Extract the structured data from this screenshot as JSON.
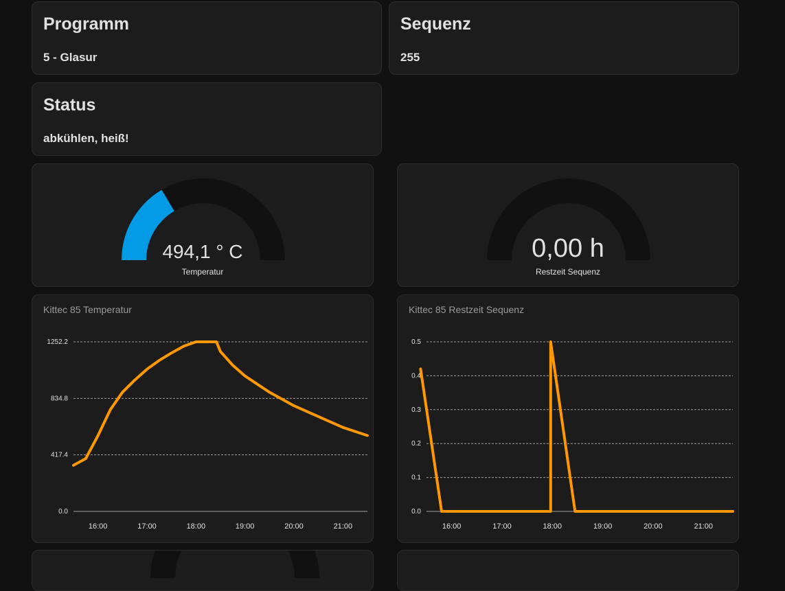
{
  "programm": {
    "title": "Programm",
    "value": "5 - Glasur"
  },
  "sequenz": {
    "title": "Sequenz",
    "value": "255"
  },
  "status": {
    "title": "Status",
    "value": "abkühlen, heiß!"
  },
  "gauges": [
    {
      "value": "494,1 ° C",
      "name": "Temperatur",
      "level": 0.33,
      "color": "#039be5",
      "track": "#111111"
    },
    {
      "value": "0,00 h",
      "name": "Restzeit Sequenz",
      "level": 0.0,
      "color": "#039be5",
      "track": "#111111"
    }
  ],
  "chart_data": [
    {
      "type": "line",
      "title": "Kittec 85 Temperatur",
      "ylim": [
        0,
        1252.2
      ],
      "yticks": [
        "0.0",
        "417.4",
        "834.8",
        "1252.2"
      ],
      "xticks": [
        "16:00",
        "17:00",
        "18:00",
        "19:00",
        "20:00",
        "21:00"
      ],
      "xlim": [
        "15:30",
        "21:30"
      ],
      "grid": true,
      "color": "#ff9800",
      "series": [
        {
          "x": [
            "15:30",
            "15:45",
            "16:00",
            "16:15",
            "16:30",
            "16:45",
            "17:00",
            "17:15",
            "17:30",
            "17:45",
            "18:00",
            "18:15",
            "18:25",
            "18:30",
            "18:45",
            "19:00",
            "19:30",
            "20:00",
            "20:30",
            "21:00",
            "21:30"
          ],
          "y": [
            340,
            390,
            560,
            750,
            880,
            970,
            1050,
            1115,
            1170,
            1220,
            1252,
            1252,
            1252,
            1180,
            1080,
            1000,
            880,
            780,
            700,
            620,
            560
          ]
        }
      ]
    },
    {
      "type": "line",
      "title": "Kittec 85 Restzeit Sequenz",
      "ylim": [
        0,
        0.5
      ],
      "yticks": [
        "0.0",
        "0.1",
        "0.2",
        "0.3",
        "0.4",
        "0.5"
      ],
      "xticks": [
        "16:00",
        "17:00",
        "18:00",
        "19:00",
        "20:00",
        "21:00"
      ],
      "xlim": [
        "15:30",
        "21:35"
      ],
      "grid": true,
      "color": "#ff9800",
      "series": [
        {
          "x": [
            "15:23",
            "15:48",
            "17:58",
            "17:58",
            "18:27",
            "21:35"
          ],
          "y": [
            0.42,
            0.0,
            0.0,
            0.5,
            0.0,
            0.0
          ]
        }
      ]
    }
  ]
}
